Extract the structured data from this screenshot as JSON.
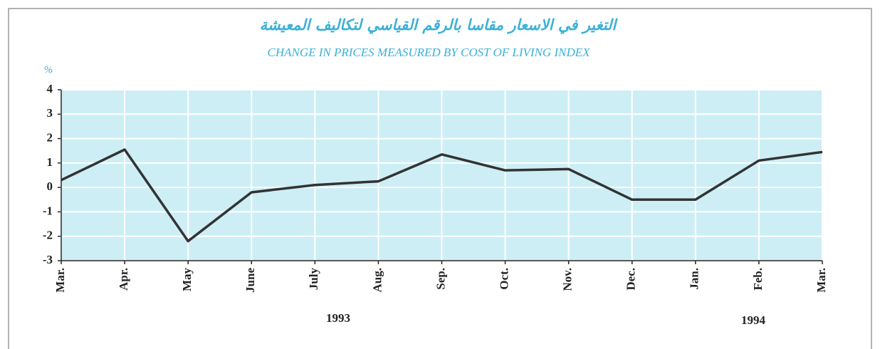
{
  "chart_data": {
    "type": "line",
    "title_arabic": "التغير في الاسعار مقاسا بالرقم القياسي لتكاليف المعيشة",
    "title": "CHANGE IN PRICES MEASURED BY COST OF LIVING INDEX",
    "y_label": "%",
    "categories": [
      "Mar.",
      "Apr.",
      "May",
      "June",
      "July",
      "Aug.",
      "Sep.",
      "Oct.",
      "Nov.",
      "Dec.",
      "Jan.",
      "Feb.",
      "Mar."
    ],
    "series": [
      {
        "name": null,
        "color": "#333333",
        "values": [
          0.3,
          1.55,
          -2.2,
          -0.2,
          0.1,
          0.25,
          1.35,
          0.7,
          0.75,
          -0.5,
          -0.5,
          1.1,
          1.45
        ]
      }
    ],
    "ylim": [
      -3,
      4
    ],
    "yticks": [
      -3,
      -2,
      -1,
      0,
      1,
      2,
      3,
      4
    ],
    "grid": true,
    "annotations": [
      "1993",
      "1994"
    ]
  }
}
